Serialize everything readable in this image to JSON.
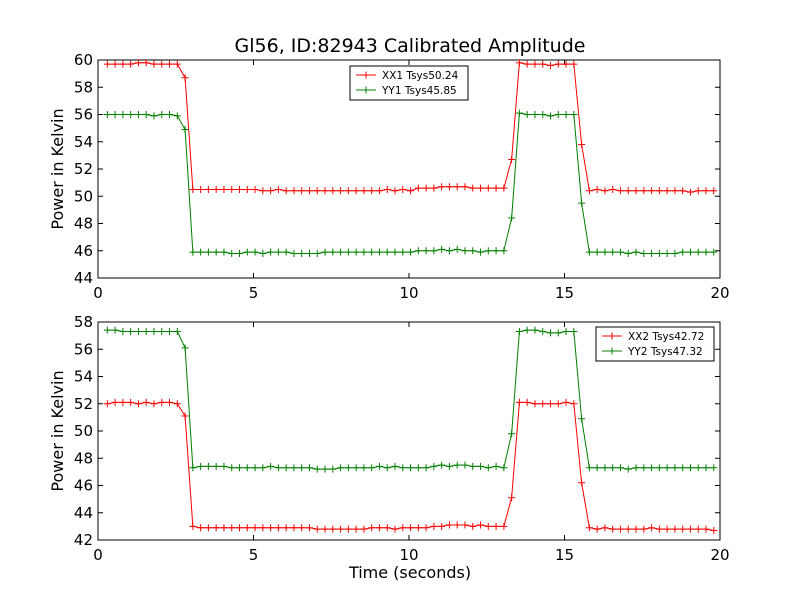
{
  "figure": {
    "title": "Gl56, ID:82943 Calibrated Amplitude",
    "xlabel": "Time (seconds)"
  },
  "chart_data": [
    {
      "type": "line",
      "title": "Gl56, ID:82943 Calibrated Amplitude",
      "xlabel": "",
      "ylabel": "Power in Kelvin",
      "xlim": [
        0,
        20
      ],
      "ylim": [
        44,
        60
      ],
      "xticks": [
        "0",
        "5",
        "10",
        "15",
        "20"
      ],
      "yticks": [
        "44",
        "46",
        "48",
        "50",
        "52",
        "54",
        "56",
        "58",
        "60"
      ],
      "grid": false,
      "legend_position": "upper-center",
      "x": [
        0.3,
        0.55,
        0.8,
        1.05,
        1.3,
        1.55,
        1.8,
        2.05,
        2.3,
        2.55,
        2.8,
        3.05,
        3.3,
        3.55,
        3.8,
        4.05,
        4.3,
        4.55,
        4.8,
        5.05,
        5.3,
        5.55,
        5.8,
        6.05,
        6.3,
        6.55,
        6.8,
        7.05,
        7.3,
        7.55,
        7.8,
        8.05,
        8.3,
        8.55,
        8.8,
        9.05,
        9.3,
        9.55,
        9.8,
        10.05,
        10.3,
        10.55,
        10.8,
        11.05,
        11.3,
        11.55,
        11.8,
        12.05,
        12.3,
        12.55,
        12.8,
        13.05,
        13.3,
        13.55,
        13.8,
        14.05,
        14.3,
        14.55,
        14.8,
        15.05,
        15.3,
        15.55,
        15.8,
        16.05,
        16.3,
        16.55,
        16.8,
        17.05,
        17.3,
        17.55,
        17.8,
        18.05,
        18.3,
        18.55,
        18.8,
        19.05,
        19.3,
        19.55,
        19.8
      ],
      "series": [
        {
          "name": "XX1 Tsys50.24",
          "color": "#ff0000",
          "values": [
            59.7,
            59.7,
            59.7,
            59.7,
            59.8,
            59.8,
            59.7,
            59.7,
            59.7,
            59.7,
            58.7,
            50.5,
            50.5,
            50.5,
            50.5,
            50.5,
            50.5,
            50.5,
            50.5,
            50.5,
            50.4,
            50.4,
            50.5,
            50.4,
            50.4,
            50.4,
            50.4,
            50.4,
            50.4,
            50.4,
            50.4,
            50.4,
            50.4,
            50.4,
            50.4,
            50.4,
            50.5,
            50.4,
            50.5,
            50.4,
            50.6,
            50.6,
            50.6,
            50.7,
            50.7,
            50.7,
            50.7,
            50.6,
            50.6,
            50.6,
            50.6,
            50.6,
            52.7,
            59.8,
            59.7,
            59.7,
            59.7,
            59.6,
            59.7,
            59.7,
            59.7,
            53.8,
            50.4,
            50.5,
            50.4,
            50.5,
            50.4,
            50.4,
            50.4,
            50.4,
            50.4,
            50.4,
            50.4,
            50.4,
            50.4,
            50.3,
            50.4,
            50.4,
            50.4
          ]
        },
        {
          "name": "YY1 Tsys45.85",
          "color": "#008000",
          "values": [
            56.0,
            56.0,
            56.0,
            56.0,
            56.0,
            56.0,
            55.9,
            56.0,
            56.0,
            55.9,
            54.9,
            45.9,
            45.9,
            45.9,
            45.9,
            45.9,
            45.8,
            45.8,
            45.9,
            45.9,
            45.8,
            45.9,
            45.9,
            45.9,
            45.8,
            45.8,
            45.8,
            45.8,
            45.9,
            45.9,
            45.9,
            45.9,
            45.9,
            45.9,
            45.9,
            45.9,
            45.9,
            45.9,
            45.9,
            45.9,
            46.0,
            46.0,
            46.0,
            46.1,
            46.0,
            46.1,
            46.0,
            46.0,
            45.9,
            46.0,
            46.0,
            46.0,
            48.4,
            56.1,
            56.0,
            56.0,
            56.0,
            55.9,
            56.0,
            56.0,
            56.0,
            49.5,
            45.9,
            45.9,
            45.9,
            45.9,
            45.9,
            45.8,
            45.9,
            45.8,
            45.8,
            45.8,
            45.8,
            45.8,
            45.9,
            45.9,
            45.9,
            45.9,
            45.9
          ]
        }
      ]
    },
    {
      "type": "line",
      "title": "",
      "xlabel": "Time (seconds)",
      "ylabel": "Power in Kelvin",
      "xlim": [
        0,
        20
      ],
      "ylim": [
        42,
        58
      ],
      "xticks": [
        "0",
        "5",
        "10",
        "15",
        "20"
      ],
      "yticks": [
        "42",
        "44",
        "46",
        "48",
        "50",
        "52",
        "54",
        "56",
        "58"
      ],
      "grid": false,
      "legend_position": "upper-right",
      "x": [
        0.3,
        0.55,
        0.8,
        1.05,
        1.3,
        1.55,
        1.8,
        2.05,
        2.3,
        2.55,
        2.8,
        3.05,
        3.3,
        3.55,
        3.8,
        4.05,
        4.3,
        4.55,
        4.8,
        5.05,
        5.3,
        5.55,
        5.8,
        6.05,
        6.3,
        6.55,
        6.8,
        7.05,
        7.3,
        7.55,
        7.8,
        8.05,
        8.3,
        8.55,
        8.8,
        9.05,
        9.3,
        9.55,
        9.8,
        10.05,
        10.3,
        10.55,
        10.8,
        11.05,
        11.3,
        11.55,
        11.8,
        12.05,
        12.3,
        12.55,
        12.8,
        13.05,
        13.3,
        13.55,
        13.8,
        14.05,
        14.3,
        14.55,
        14.8,
        15.05,
        15.3,
        15.55,
        15.8,
        16.05,
        16.3,
        16.55,
        16.8,
        17.05,
        17.3,
        17.55,
        17.8,
        18.05,
        18.3,
        18.55,
        18.8,
        19.05,
        19.3,
        19.55,
        19.8
      ],
      "series": [
        {
          "name": "XX2 Tsys42.72",
          "color": "#ff0000",
          "values": [
            52.0,
            52.1,
            52.1,
            52.1,
            52.0,
            52.1,
            52.0,
            52.1,
            52.1,
            52.0,
            51.1,
            43.0,
            42.9,
            42.9,
            42.9,
            42.9,
            42.9,
            42.9,
            42.9,
            42.9,
            42.9,
            42.9,
            42.9,
            42.9,
            42.9,
            42.9,
            42.9,
            42.8,
            42.8,
            42.8,
            42.8,
            42.8,
            42.8,
            42.8,
            42.9,
            42.9,
            42.9,
            42.8,
            42.9,
            42.9,
            42.9,
            42.9,
            43.0,
            43.0,
            43.1,
            43.1,
            43.1,
            43.0,
            43.1,
            43.0,
            43.0,
            43.0,
            45.1,
            52.1,
            52.1,
            52.0,
            52.0,
            52.0,
            52.0,
            52.1,
            52.0,
            46.2,
            42.9,
            42.8,
            42.9,
            42.8,
            42.8,
            42.8,
            42.8,
            42.8,
            42.9,
            42.8,
            42.8,
            42.8,
            42.8,
            42.8,
            42.8,
            42.8,
            42.7
          ]
        },
        {
          "name": "YY2 Tsys47.32",
          "color": "#008000",
          "values": [
            57.4,
            57.4,
            57.3,
            57.3,
            57.3,
            57.3,
            57.3,
            57.3,
            57.3,
            57.3,
            56.1,
            47.3,
            47.4,
            47.4,
            47.4,
            47.4,
            47.3,
            47.3,
            47.3,
            47.3,
            47.3,
            47.4,
            47.3,
            47.3,
            47.3,
            47.3,
            47.3,
            47.2,
            47.2,
            47.2,
            47.3,
            47.3,
            47.3,
            47.3,
            47.3,
            47.4,
            47.3,
            47.4,
            47.3,
            47.3,
            47.3,
            47.3,
            47.4,
            47.5,
            47.4,
            47.5,
            47.5,
            47.4,
            47.4,
            47.3,
            47.4,
            47.3,
            49.8,
            57.3,
            57.4,
            57.4,
            57.3,
            57.2,
            57.2,
            57.3,
            57.3,
            50.9,
            47.3,
            47.3,
            47.3,
            47.3,
            47.3,
            47.2,
            47.3,
            47.3,
            47.3,
            47.3,
            47.3,
            47.3,
            47.3,
            47.3,
            47.3,
            47.3,
            47.3
          ]
        }
      ]
    }
  ]
}
